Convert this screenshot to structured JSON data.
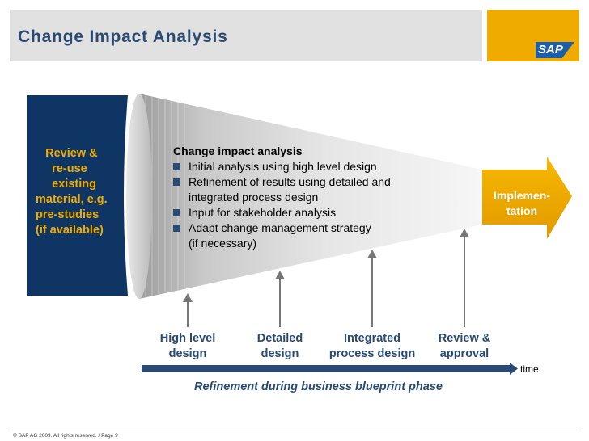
{
  "header": {
    "title": "Change Impact Analysis",
    "logo_text": "SAP"
  },
  "left_panel": {
    "text": "    Review &\n      re-use\n      existing\n material, e.g.\n pre-studies\n (if available)"
  },
  "funnel": {
    "heading": "Change impact analysis",
    "bullets": [
      "Initial analysis using high level design",
      "Refinement of results using detailed and\nintegrated process design",
      "Input for stakeholder analysis",
      "Adapt change management strategy\n(if necessary)"
    ]
  },
  "implementation": {
    "label": "Implemen-\ntation"
  },
  "phases": [
    {
      "label": "High level\ndesign"
    },
    {
      "label": "Detailed\ndesign"
    },
    {
      "label": "Integrated\nprocess design"
    },
    {
      "label": "Review &\napproval"
    }
  ],
  "timeline": {
    "time_label": "time",
    "caption": "Refinement during business blueprint phase"
  },
  "footer": {
    "text": "© SAP AG 2009. All rights reserved. / Page 9"
  },
  "colors": {
    "navy": "#0f3564",
    "title_blue": "#2a4a73",
    "accent_orange": "#f0ab00",
    "timeline_blue": "#2a4a73"
  }
}
